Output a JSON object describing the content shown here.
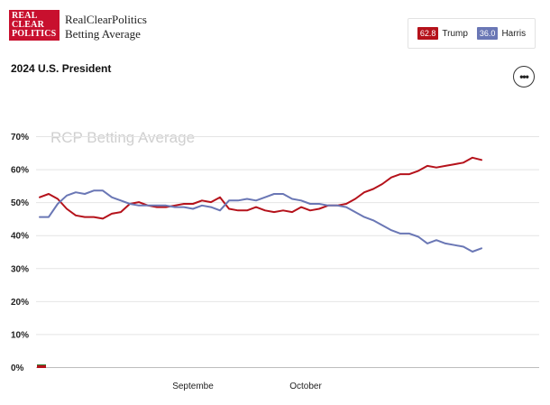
{
  "header": {
    "logo_lines": [
      "REAL",
      "CLEAR",
      "POLITICS"
    ],
    "brand_line1": "RealClearPolitics",
    "brand_line2": "Betting Average"
  },
  "legend": [
    {
      "value": "62.8",
      "name": "Trump",
      "color": "#b5121b"
    },
    {
      "value": "36.0",
      "name": "Harris",
      "color": "#6a77b5"
    }
  ],
  "page_title": "2024 U.S. President",
  "menu_icon": "more-horizontal-icon",
  "menu_glyph": "•••",
  "chart_data": {
    "type": "line",
    "title": "",
    "watermark": "RCP Betting Average",
    "xlabel": "",
    "ylabel": "",
    "ylim": [
      0,
      70
    ],
    "ytick_labels": [
      "0%",
      "10%",
      "20%",
      "30%",
      "40%",
      "50%",
      "60%",
      "70%"
    ],
    "ytick_values": [
      0,
      10,
      20,
      30,
      40,
      50,
      60,
      70
    ],
    "xlim": [
      0,
      100
    ],
    "xtick_labels": [
      "Septembe",
      "October"
    ],
    "xtick_values": [
      34,
      59
    ],
    "grid": true,
    "legend_position": "top-right",
    "x": [
      0,
      2,
      4,
      6,
      8,
      10,
      12,
      14,
      16,
      18,
      20,
      22,
      24,
      26,
      28,
      30,
      32,
      34,
      36,
      38,
      40,
      42,
      44,
      46,
      48,
      50,
      52,
      54,
      56,
      58,
      60,
      62,
      64,
      66,
      68,
      70,
      72,
      74,
      76,
      78,
      80,
      82,
      84,
      86,
      88,
      90,
      92,
      94,
      96,
      98
    ],
    "series": [
      {
        "name": "Trump",
        "color": "#b5121b",
        "values": [
          51.5,
          52.5,
          51,
          48,
          46,
          45.5,
          45.5,
          45,
          46.5,
          47,
          49.5,
          50,
          49,
          48.5,
          48.5,
          49,
          49.5,
          49.5,
          50.5,
          50,
          51.5,
          48,
          47.5,
          47.5,
          48.5,
          47.5,
          47,
          47.5,
          47,
          48.5,
          47.5,
          48,
          49,
          49,
          49.5,
          51,
          53,
          54,
          55.5,
          57.5,
          58.5,
          58.5,
          59.5,
          61,
          60.5,
          61,
          61.5,
          62,
          63.5,
          62.8
        ]
      },
      {
        "name": "Harris",
        "color": "#6a77b5",
        "values": [
          45.5,
          45.5,
          49.5,
          52,
          53,
          52.5,
          53.5,
          53.5,
          51.5,
          50.5,
          49.5,
          49,
          49,
          49,
          49,
          48.5,
          48.5,
          48,
          49,
          48.5,
          47.5,
          50.5,
          50.5,
          51,
          50.5,
          51.5,
          52.5,
          52.5,
          51,
          50.5,
          49.5,
          49.5,
          49,
          49,
          48.5,
          47,
          45.5,
          44.5,
          43,
          41.5,
          40.5,
          40.5,
          39.5,
          37.5,
          38.5,
          37.5,
          37,
          36.5,
          35,
          36.0
        ]
      }
    ]
  }
}
